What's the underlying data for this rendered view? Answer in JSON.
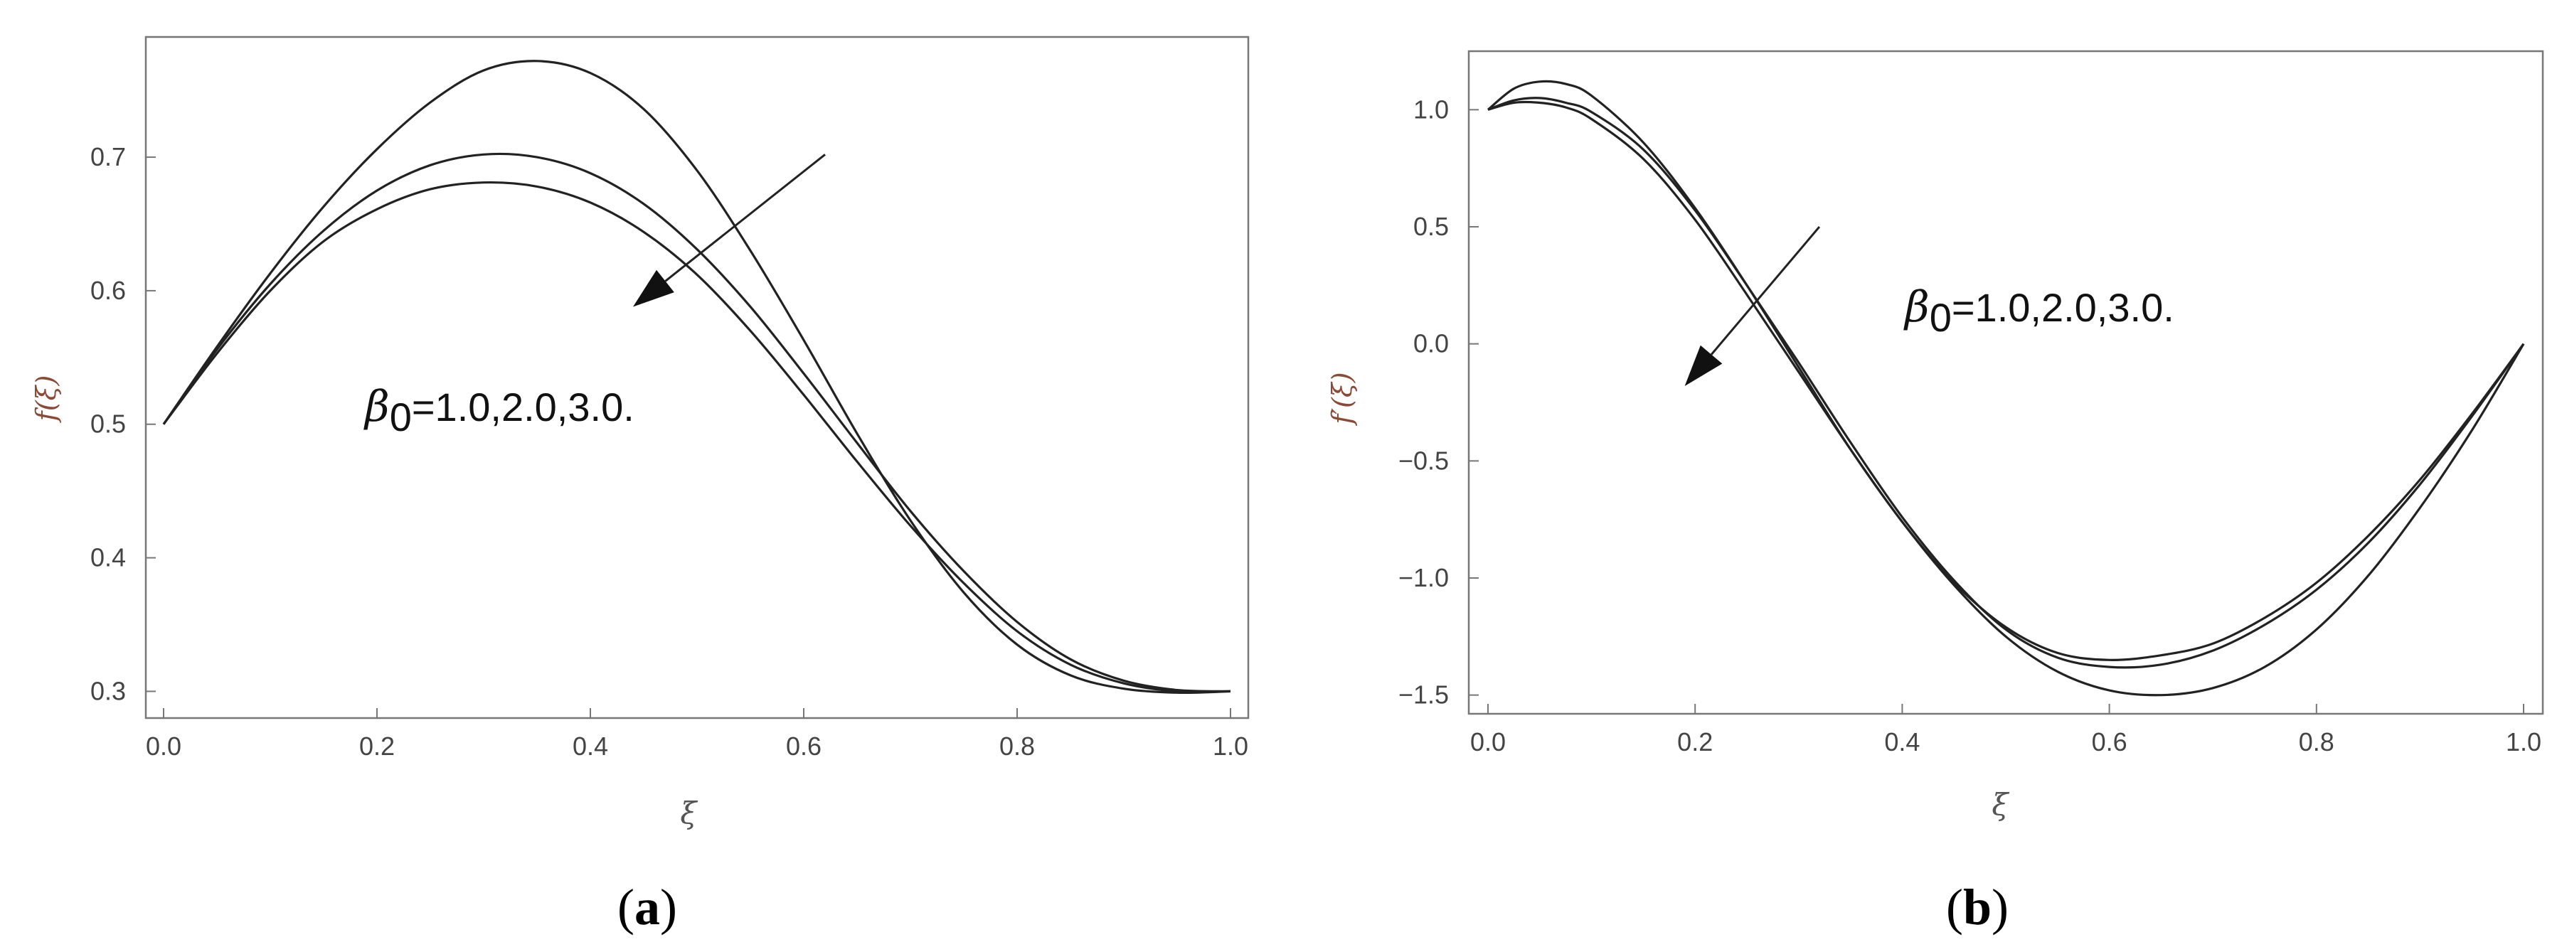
{
  "chart_data": [
    {
      "type": "line",
      "panel_label": "(a)",
      "panel_letter": "a",
      "xlabel": "ξ",
      "ylabel": "f(ξ)",
      "xlim": [
        0,
        1
      ],
      "ylim": [
        0.28,
        0.79
      ],
      "xticks": [
        "0.0",
        "0.2",
        "0.4",
        "0.6",
        "0.8",
        "1.0"
      ],
      "yticks": [
        "0.3",
        "0.4",
        "0.5",
        "0.6",
        "0.7"
      ],
      "annotation": {
        "symbol": "β",
        "subscript": "0",
        "text": "=1.0,2.0,3.0."
      },
      "arrow": {
        "from": [
          0.62,
          0.702
        ],
        "to": [
          0.44,
          0.588
        ]
      },
      "x": [
        0,
        0.05,
        0.1,
        0.15,
        0.2,
        0.25,
        0.3,
        0.35,
        0.4,
        0.45,
        0.5,
        0.55,
        0.6,
        0.65,
        0.7,
        0.75,
        0.8,
        0.85,
        0.9,
        0.95,
        1.0
      ],
      "series": [
        {
          "values": [
            0.5,
            0.558,
            0.613,
            0.663,
            0.706,
            0.741,
            0.765,
            0.772,
            0.763,
            0.736,
            0.69,
            0.63,
            0.563,
            0.493,
            0.428,
            0.374,
            0.335,
            0.312,
            0.302,
            0.299,
            0.3
          ]
        },
        {
          "values": [
            0.5,
            0.556,
            0.605,
            0.645,
            0.675,
            0.694,
            0.702,
            0.7,
            0.688,
            0.665,
            0.631,
            0.588,
            0.538,
            0.486,
            0.435,
            0.39,
            0.352,
            0.324,
            0.308,
            0.301,
            0.3
          ]
        },
        {
          "values": [
            0.5,
            0.553,
            0.6,
            0.637,
            0.661,
            0.676,
            0.681,
            0.678,
            0.666,
            0.644,
            0.612,
            0.57,
            0.522,
            0.472,
            0.424,
            0.381,
            0.345,
            0.32,
            0.306,
            0.3,
            0.3
          ]
        }
      ]
    },
    {
      "type": "line",
      "panel_label": "(b)",
      "panel_letter": "b",
      "xlabel": "ξ",
      "ylabel": "f′(ξ)",
      "xlim": [
        0,
        1
      ],
      "ylim": [
        -1.58,
        1.25
      ],
      "xticks": [
        "0.0",
        "0.2",
        "0.4",
        "0.6",
        "0.8",
        "1.0"
      ],
      "yticks": [
        "1.0",
        "0.5",
        "0.0",
        "−0.5",
        "−1.0",
        "−1.5"
      ],
      "annotation": {
        "symbol": "β",
        "subscript": "0",
        "text": "=1.0,2.0,3.0."
      },
      "arrow": {
        "from": [
          0.32,
          0.5
        ],
        "to": [
          0.19,
          -0.18
        ]
      },
      "x": [
        0,
        0.025,
        0.05,
        0.075,
        0.1,
        0.15,
        0.2,
        0.25,
        0.3,
        0.35,
        0.4,
        0.45,
        0.5,
        0.55,
        0.6,
        0.65,
        0.7,
        0.75,
        0.8,
        0.85,
        0.9,
        0.95,
        1.0
      ],
      "series": [
        {
          "values": [
            1.0,
            1.09,
            1.12,
            1.11,
            1.06,
            0.86,
            0.58,
            0.25,
            -0.1,
            -0.45,
            -0.76,
            -1.03,
            -1.25,
            -1.4,
            -1.48,
            -1.5,
            -1.47,
            -1.38,
            -1.22,
            -0.99,
            -0.7,
            -0.37,
            0.0
          ]
        },
        {
          "values": [
            1.0,
            1.04,
            1.05,
            1.03,
            0.99,
            0.83,
            0.57,
            0.25,
            -0.08,
            -0.42,
            -0.74,
            -1.01,
            -1.22,
            -1.34,
            -1.38,
            -1.37,
            -1.31,
            -1.2,
            -1.05,
            -0.85,
            -0.6,
            -0.31,
            0.0
          ]
        },
        {
          "values": [
            1.0,
            1.03,
            1.03,
            1.01,
            0.96,
            0.79,
            0.53,
            0.21,
            -0.12,
            -0.45,
            -0.76,
            -1.02,
            -1.21,
            -1.32,
            -1.35,
            -1.33,
            -1.28,
            -1.17,
            -1.02,
            -0.82,
            -0.58,
            -0.3,
            0.0
          ]
        }
      ]
    }
  ]
}
